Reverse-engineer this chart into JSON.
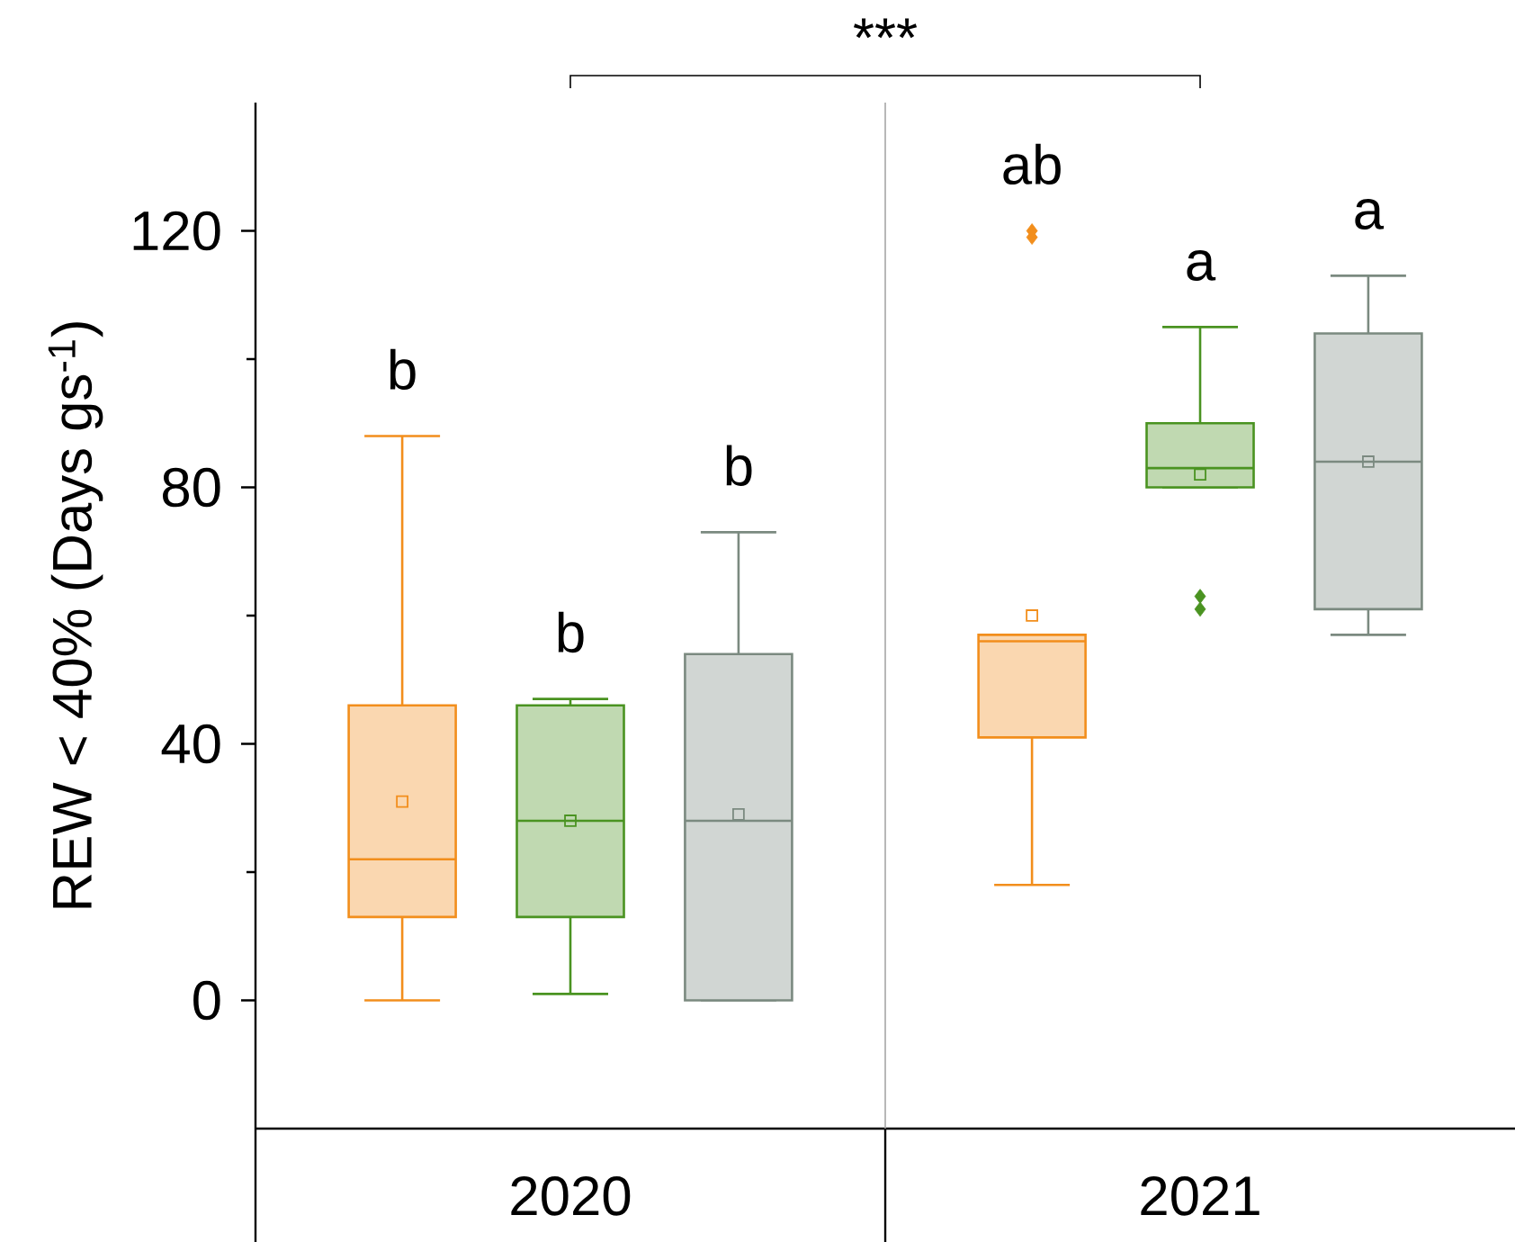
{
  "chart_data": {
    "type": "box",
    "ylabel": "REW < 40% (Days gs$^{-1}$)",
    "categories": [
      "2020",
      "2021"
    ],
    "ylim": [
      -20,
      140
    ],
    "yticks": [
      0,
      40,
      80,
      120
    ],
    "series": [
      {
        "color": "#f28e1c",
        "boxes": [
          {
            "low": 0,
            "q1": 13,
            "median": 22,
            "q3": 46,
            "high": 88,
            "mean": 31
          },
          {
            "low": 18,
            "q1": 41,
            "median": 56,
            "q3": 57,
            "high": 57,
            "mean": 60,
            "outliers": [
              119,
              120
            ]
          }
        ]
      },
      {
        "color": "#4a9321",
        "boxes": [
          {
            "low": 1,
            "q1": 13,
            "median": 28,
            "q3": 46,
            "high": 47,
            "mean": 28
          },
          {
            "low": 80,
            "q1": 80,
            "median": 83,
            "q3": 90,
            "high": 105,
            "mean": 82,
            "outliers": [
              61,
              63
            ]
          }
        ]
      },
      {
        "color": "#7b8a80",
        "boxes": [
          {
            "low": 0,
            "q1": 0,
            "median": 28,
            "q3": 54,
            "high": 73,
            "mean": 29
          },
          {
            "low": 57,
            "q1": 61,
            "median": 84,
            "q3": 104,
            "high": 113,
            "mean": 84
          }
        ]
      }
    ],
    "annotations": [
      "b",
      "b",
      "b",
      "ab",
      "a",
      "a",
      "***"
    ]
  }
}
